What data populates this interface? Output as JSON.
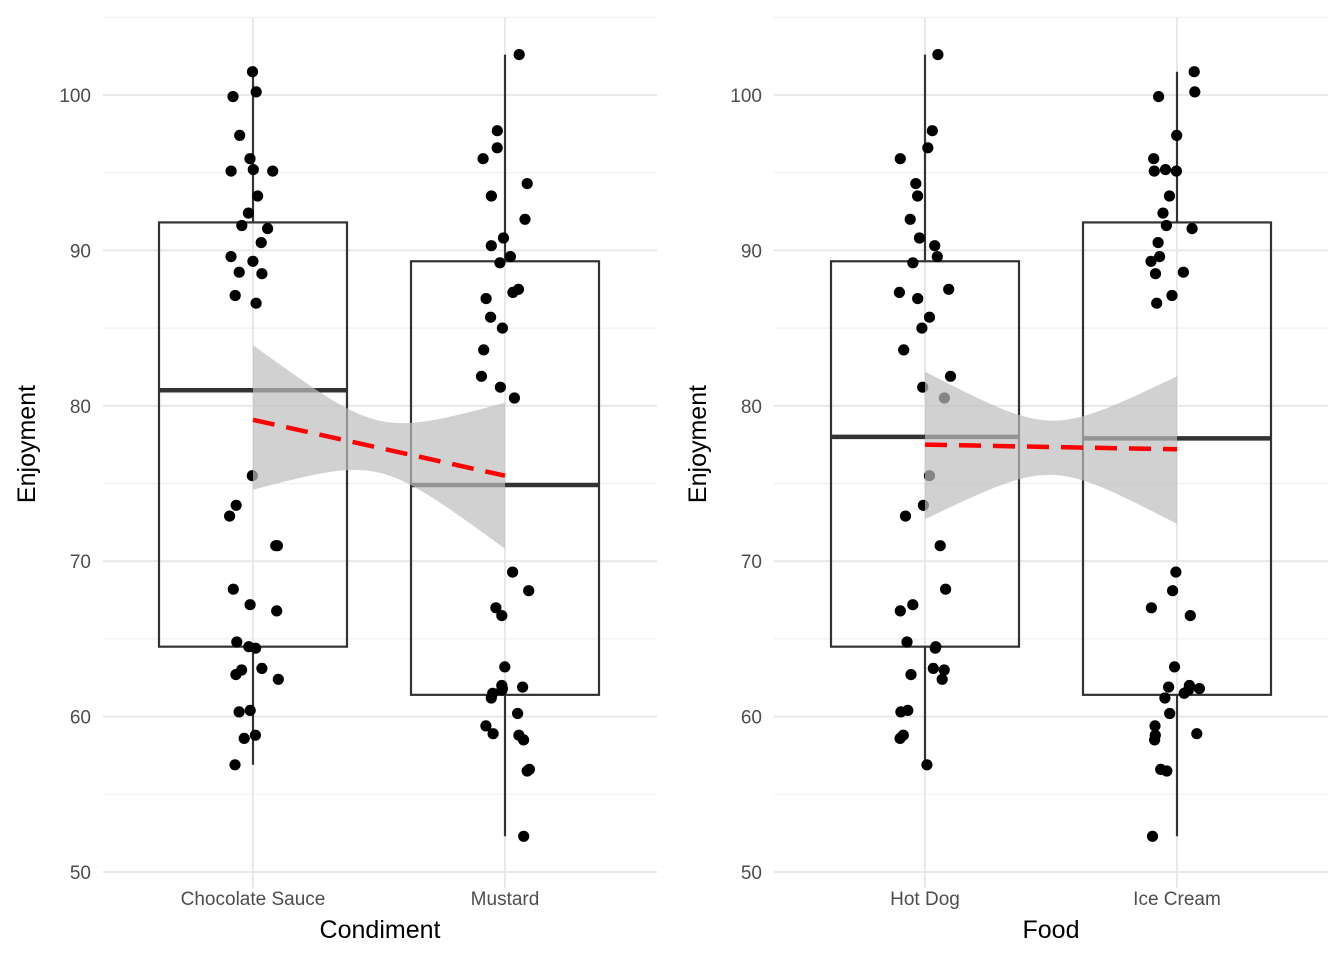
{
  "chart_data": [
    {
      "type": "box",
      "xlabel": "Condiment",
      "ylabel": "Enjoyment",
      "categories": [
        "Chocolate Sauce",
        "Mustard"
      ],
      "ylim": [
        48.8,
        104.9
      ],
      "yticks": [
        50,
        60,
        70,
        80,
        90,
        100
      ],
      "grid": true,
      "boxes": [
        {
          "category": "Chocolate Sauce",
          "whisker_low": 56.9,
          "q1": 64.5,
          "median": 81.0,
          "q3": 91.8,
          "whisker_high": 101.5
        },
        {
          "category": "Mustard",
          "whisker_low": 52.3,
          "q1": 61.4,
          "median": 74.9,
          "q3": 89.3,
          "whisker_high": 102.6
        }
      ],
      "points": [
        {
          "category": "Chocolate Sauce",
          "values": [
            101.5,
            100.2,
            99.9,
            97.4,
            95.9,
            95.2,
            95.1,
            95.1,
            93.5,
            92.4,
            91.6,
            91.4,
            90.5,
            89.6,
            89.3,
            88.6,
            88.5,
            87.1,
            86.6,
            75.5,
            73.6,
            72.9,
            71.0,
            71.0,
            68.2,
            67.2,
            66.8,
            64.8,
            64.5,
            64.4,
            63.1,
            63.0,
            62.7,
            62.4,
            60.4,
            60.3,
            58.8,
            58.6,
            56.9
          ]
        },
        {
          "category": "Mustard",
          "values": [
            102.6,
            97.7,
            96.6,
            95.9,
            94.3,
            93.5,
            92.0,
            90.8,
            90.3,
            89.6,
            89.2,
            87.5,
            87.3,
            86.9,
            85.7,
            85.0,
            83.6,
            81.9,
            81.2,
            80.5,
            69.3,
            68.1,
            67.0,
            66.5,
            63.2,
            62.0,
            61.9,
            61.8,
            61.7,
            61.5,
            61.2,
            60.2,
            59.4,
            58.9,
            58.8,
            58.5,
            56.6,
            56.5,
            52.3
          ]
        }
      ],
      "trend": {
        "x": [
          "Chocolate Sauce",
          "Mustard"
        ],
        "y": [
          79.1,
          75.5
        ],
        "ci_low": [
          74.6,
          70.8
        ],
        "ci_high": [
          83.9,
          80.2
        ],
        "color": "#ff0000",
        "ci_color": "#bebebe"
      }
    },
    {
      "type": "box",
      "xlabel": "Food",
      "ylabel": "Enjoyment",
      "categories": [
        "Hot Dog",
        "Ice Cream"
      ],
      "ylim": [
        48.8,
        104.9
      ],
      "yticks": [
        50,
        60,
        70,
        80,
        90,
        100
      ],
      "grid": true,
      "boxes": [
        {
          "category": "Hot Dog",
          "whisker_low": 56.9,
          "q1": 64.5,
          "median": 78.0,
          "q3": 89.3,
          "whisker_high": 102.6
        },
        {
          "category": "Ice Cream",
          "whisker_low": 52.3,
          "q1": 61.4,
          "median": 77.9,
          "q3": 91.8,
          "whisker_high": 101.5
        }
      ],
      "points": [
        {
          "category": "Hot Dog",
          "values": [
            102.6,
            97.7,
            96.6,
            95.9,
            94.3,
            93.5,
            92.0,
            90.8,
            90.3,
            89.6,
            89.2,
            87.5,
            87.3,
            86.9,
            85.7,
            85.0,
            83.6,
            81.9,
            81.2,
            80.5,
            75.5,
            73.6,
            72.9,
            71.0,
            68.2,
            67.2,
            66.8,
            64.8,
            64.5,
            64.4,
            63.1,
            63.0,
            62.7,
            62.4,
            60.4,
            60.3,
            58.8,
            58.6,
            56.9
          ]
        },
        {
          "category": "Ice Cream",
          "values": [
            101.5,
            100.2,
            99.9,
            97.4,
            95.9,
            95.2,
            95.1,
            95.1,
            93.5,
            92.4,
            91.6,
            91.4,
            90.5,
            89.6,
            89.3,
            88.6,
            88.5,
            87.1,
            86.6,
            69.3,
            68.1,
            67.0,
            66.5,
            63.2,
            62.0,
            61.9,
            61.8,
            61.7,
            61.5,
            61.2,
            60.2,
            59.4,
            58.9,
            58.8,
            58.5,
            56.6,
            56.5,
            52.3
          ]
        }
      ],
      "trend": {
        "x": [
          "Hot Dog",
          "Ice Cream"
        ],
        "y": [
          77.5,
          77.2
        ],
        "ci_low": [
          72.7,
          72.4
        ],
        "ci_high": [
          82.2,
          81.9
        ],
        "color": "#ff0000",
        "ci_color": "#bebebe"
      }
    }
  ]
}
